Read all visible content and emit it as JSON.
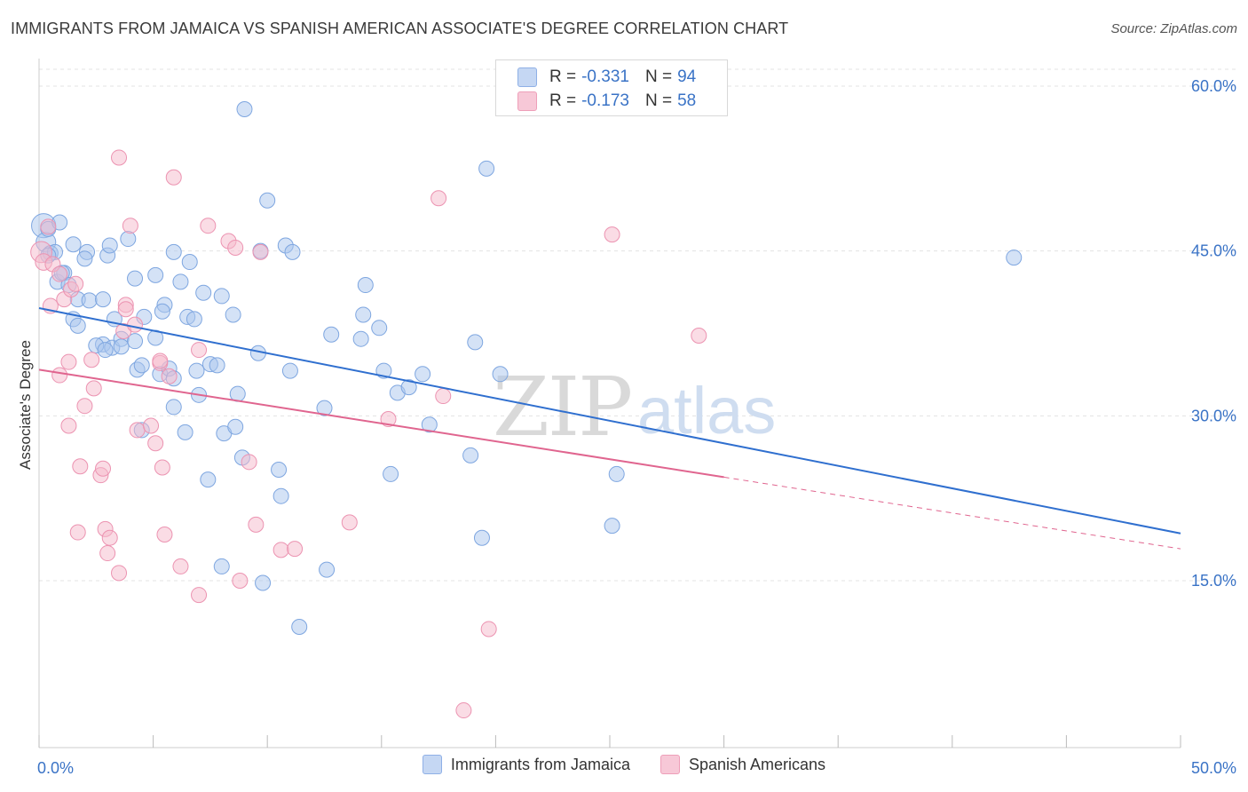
{
  "title": "IMMIGRANTS FROM JAMAICA VS SPANISH AMERICAN ASSOCIATE'S DEGREE CORRELATION CHART",
  "source": "Source: ZipAtlas.com",
  "watermark": {
    "zip": "ZIP",
    "atlas": "atlas"
  },
  "colors": {
    "blue_fill": "#a9c5ee",
    "blue_stroke": "#7ea6e0",
    "blue_line": "#2f6fcf",
    "pink_fill": "#f5b9cc",
    "pink_stroke": "#ec93b1",
    "pink_line": "#e0658f",
    "axis_text": "#3a73c6",
    "grid": "#e3e3e3"
  },
  "stats_box": {
    "rows": [
      {
        "r_label": "R =",
        "r_value": "-0.331",
        "n_label": "N =",
        "n_value": "94"
      },
      {
        "r_label": "R =",
        "r_value": "-0.173",
        "n_label": "N =",
        "n_value": "58"
      }
    ]
  },
  "legend": {
    "items": [
      "Immigrants from Jamaica",
      "Spanish Americans"
    ]
  },
  "chart_data": {
    "type": "scatter",
    "title": "IMMIGRANTS FROM JAMAICA VS SPANISH AMERICAN ASSOCIATE'S DEGREE CORRELATION CHART",
    "xlabel": "",
    "ylabel": "Associate's Degree",
    "xlim": [
      0,
      50
    ],
    "ylim": [
      0,
      63
    ],
    "x_tick_labels": [
      {
        "value": 0,
        "label": "0.0%"
      },
      {
        "value": 50,
        "label": "50.0%"
      }
    ],
    "y_tick_labels": [
      {
        "value": 15,
        "label": "15.0%"
      },
      {
        "value": 30,
        "label": "30.0%"
      },
      {
        "value": 45,
        "label": "45.0%"
      },
      {
        "value": 60,
        "label": "60.0%"
      }
    ],
    "x_minor_ticks": [
      0,
      5,
      10,
      15,
      20,
      25,
      30,
      35,
      40,
      45,
      50
    ],
    "grid": true,
    "legend_position": "bottom-center",
    "series": [
      {
        "name": "Immigrants from Jamaica",
        "color": "blue",
        "trend": {
          "x": [
            0,
            50
          ],
          "y": [
            39.8,
            19.3
          ],
          "dashed_from": null
        },
        "points": [
          [
            0.2,
            47.3,
            1.6
          ],
          [
            0.3,
            45.8,
            1.3
          ],
          [
            0.4,
            47.0,
            1.0
          ],
          [
            0.5,
            44.8,
            1.0
          ],
          [
            0.7,
            44.9,
            1
          ],
          [
            0.9,
            47.6,
            1
          ],
          [
            0.8,
            42.2,
            1
          ],
          [
            1.1,
            43.0,
            1
          ],
          [
            1.5,
            45.6,
            1
          ],
          [
            2.1,
            44.9,
            1
          ],
          [
            2.0,
            44.3,
            1
          ],
          [
            1.3,
            41.9,
            1
          ],
          [
            1.7,
            40.6,
            1
          ],
          [
            2.2,
            40.5,
            1
          ],
          [
            1.5,
            38.8,
            1
          ],
          [
            1.7,
            38.2,
            1
          ],
          [
            2.8,
            40.6,
            1
          ],
          [
            3.0,
            44.6,
            1
          ],
          [
            3.1,
            45.5,
            1
          ],
          [
            3.9,
            46.1,
            1
          ],
          [
            4.2,
            42.5,
            1
          ],
          [
            5.1,
            42.8,
            1
          ],
          [
            5.5,
            40.1,
            1
          ],
          [
            4.6,
            39.0,
            1
          ],
          [
            5.4,
            39.5,
            1
          ],
          [
            3.3,
            38.8,
            1
          ],
          [
            2.8,
            36.5,
            1
          ],
          [
            3.2,
            36.2,
            1
          ],
          [
            3.6,
            37.0,
            1
          ],
          [
            4.2,
            36.8,
            1
          ],
          [
            5.1,
            37.1,
            1
          ],
          [
            4.3,
            34.2,
            1
          ],
          [
            4.5,
            34.6,
            1
          ],
          [
            5.3,
            33.8,
            1
          ],
          [
            5.7,
            34.3,
            1
          ],
          [
            5.9,
            33.4,
            1
          ],
          [
            5.9,
            44.9,
            1
          ],
          [
            6.2,
            42.2,
            1
          ],
          [
            6.6,
            44.0,
            1
          ],
          [
            6.5,
            39.0,
            1
          ],
          [
            6.8,
            38.8,
            1
          ],
          [
            7.2,
            41.2,
            1
          ],
          [
            8.0,
            40.9,
            1
          ],
          [
            8.5,
            39.2,
            1
          ],
          [
            7.5,
            34.7,
            1
          ],
          [
            7.8,
            34.6,
            1
          ],
          [
            6.9,
            34.1,
            1
          ],
          [
            7.0,
            31.9,
            1
          ],
          [
            5.9,
            30.8,
            1
          ],
          [
            6.4,
            28.5,
            1
          ],
          [
            4.5,
            28.7,
            1
          ],
          [
            8.1,
            28.4,
            1
          ],
          [
            8.6,
            29.0,
            1
          ],
          [
            8.7,
            32.0,
            1
          ],
          [
            9.6,
            35.7,
            1
          ],
          [
            9.7,
            45.0,
            1
          ],
          [
            9.0,
            57.9,
            1
          ],
          [
            10.0,
            49.6,
            1
          ],
          [
            10.8,
            45.5,
            1
          ],
          [
            11.1,
            44.9,
            1
          ],
          [
            11.0,
            34.1,
            1
          ],
          [
            12.5,
            30.7,
            1
          ],
          [
            12.8,
            37.4,
            1
          ],
          [
            14.1,
            37.0,
            1
          ],
          [
            14.2,
            39.2,
            1
          ],
          [
            14.3,
            41.9,
            1
          ],
          [
            14.9,
            38.0,
            1
          ],
          [
            15.1,
            34.1,
            1
          ],
          [
            15.7,
            32.1,
            1
          ],
          [
            16.2,
            32.6,
            1
          ],
          [
            16.8,
            33.8,
            1
          ],
          [
            17.1,
            29.2,
            1
          ],
          [
            18.9,
            26.4,
            1
          ],
          [
            19.1,
            36.7,
            1
          ],
          [
            19.6,
            52.5,
            1
          ],
          [
            20.2,
            33.8,
            1
          ],
          [
            8.9,
            26.2,
            1
          ],
          [
            10.5,
            25.1,
            1
          ],
          [
            10.6,
            22.7,
            1
          ],
          [
            7.4,
            24.2,
            1
          ],
          [
            8.0,
            16.3,
            1
          ],
          [
            9.8,
            14.8,
            1
          ],
          [
            12.6,
            16.0,
            1
          ],
          [
            11.4,
            10.8,
            1
          ],
          [
            15.4,
            24.7,
            1
          ],
          [
            19.4,
            18.9,
            1
          ],
          [
            25.3,
            24.7,
            1
          ],
          [
            25.1,
            20.0,
            1
          ],
          [
            42.7,
            44.4,
            1
          ],
          [
            3.6,
            36.3,
            1
          ],
          [
            2.5,
            36.4,
            1
          ],
          [
            0.4,
            44.6,
            1
          ],
          [
            1.0,
            43.0,
            1
          ],
          [
            2.9,
            36.0,
            1
          ]
        ]
      },
      {
        "name": "Spanish Americans",
        "color": "pink",
        "trend": {
          "x": [
            0,
            50
          ],
          "y": [
            34.2,
            17.9
          ],
          "solid_until": 30
        },
        "points": [
          [
            0.1,
            44.9,
            1.4
          ],
          [
            0.2,
            44.0,
            1.1
          ],
          [
            0.4,
            47.2,
            1.0
          ],
          [
            0.6,
            43.8,
            1
          ],
          [
            0.9,
            42.9,
            1
          ],
          [
            0.5,
            40.0,
            1
          ],
          [
            1.1,
            40.6,
            1
          ],
          [
            1.4,
            41.5,
            1
          ],
          [
            1.6,
            42.0,
            1
          ],
          [
            0.9,
            33.7,
            1
          ],
          [
            1.3,
            34.9,
            1
          ],
          [
            2.3,
            35.1,
            1
          ],
          [
            2.4,
            32.5,
            1
          ],
          [
            2.0,
            30.9,
            1
          ],
          [
            1.3,
            29.1,
            1
          ],
          [
            1.8,
            25.4,
            1
          ],
          [
            2.7,
            24.6,
            1
          ],
          [
            2.8,
            25.2,
            1
          ],
          [
            1.7,
            19.4,
            1
          ],
          [
            2.9,
            19.7,
            1
          ],
          [
            3.1,
            18.9,
            1
          ],
          [
            3.0,
            17.5,
            1
          ],
          [
            3.5,
            15.7,
            1
          ],
          [
            3.8,
            40.1,
            1
          ],
          [
            3.7,
            37.7,
            1
          ],
          [
            3.8,
            39.7,
            1
          ],
          [
            4.2,
            38.3,
            1
          ],
          [
            4.0,
            47.3,
            1
          ],
          [
            3.5,
            53.5,
            1
          ],
          [
            5.9,
            51.7,
            1
          ],
          [
            7.4,
            47.3,
            1
          ],
          [
            8.3,
            45.9,
            1
          ],
          [
            8.6,
            45.3,
            1
          ],
          [
            9.7,
            44.9,
            1
          ],
          [
            7.0,
            36.0,
            1
          ],
          [
            5.3,
            34.8,
            1
          ],
          [
            5.7,
            33.6,
            1
          ],
          [
            4.3,
            28.7,
            1
          ],
          [
            4.9,
            29.1,
            1
          ],
          [
            5.1,
            27.5,
            1
          ],
          [
            5.4,
            25.3,
            1
          ],
          [
            5.5,
            19.2,
            1
          ],
          [
            6.2,
            16.3,
            1
          ],
          [
            7.0,
            13.7,
            1
          ],
          [
            8.8,
            15.0,
            1
          ],
          [
            9.5,
            20.1,
            1
          ],
          [
            9.2,
            25.8,
            1
          ],
          [
            10.6,
            17.8,
            1
          ],
          [
            11.2,
            17.9,
            1
          ],
          [
            13.6,
            20.3,
            1
          ],
          [
            15.3,
            29.7,
            1
          ],
          [
            17.5,
            49.8,
            1
          ],
          [
            17.7,
            31.8,
            1
          ],
          [
            18.6,
            3.2,
            1
          ],
          [
            19.7,
            10.6,
            1
          ],
          [
            25.1,
            46.5,
            1
          ],
          [
            28.9,
            37.3,
            1
          ],
          [
            5.3,
            35.0,
            1
          ]
        ]
      }
    ]
  }
}
